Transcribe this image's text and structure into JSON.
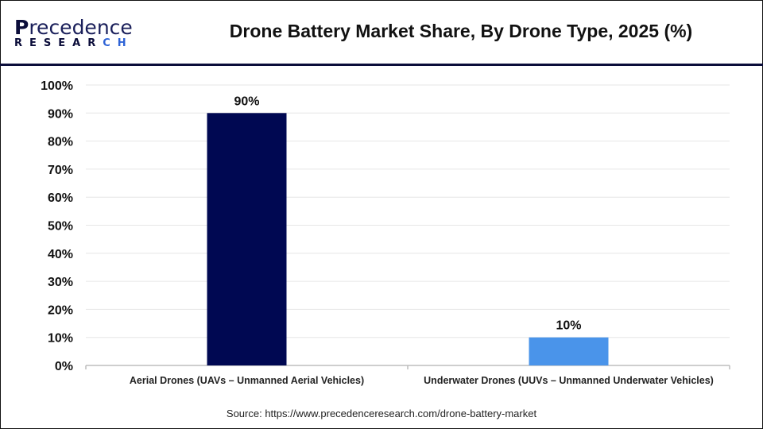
{
  "logo": {
    "line1": "Precedence",
    "line2": "RESEARCH"
  },
  "chart_data": {
    "type": "bar",
    "title": "Drone Battery Market Share, By Drone Type, 2025 (%)",
    "categories": [
      "Aerial Drones (UAVs – Unmanned Aerial Vehicles)",
      "Underwater Drones (UUVs – Unmanned Underwater Vehicles)"
    ],
    "values": [
      90,
      10
    ],
    "data_labels": [
      "90%",
      "10%"
    ],
    "colors": [
      "#000852",
      "#4a94ea"
    ],
    "xlabel": "",
    "ylabel": "",
    "ylim": [
      0,
      100
    ],
    "yticks": [
      "0%",
      "10%",
      "20%",
      "30%",
      "40%",
      "50%",
      "60%",
      "70%",
      "80%",
      "90%",
      "100%"
    ],
    "grid": true,
    "legend": "none"
  },
  "source": "Source: https://www.precedenceresearch.com/drone-battery-market"
}
